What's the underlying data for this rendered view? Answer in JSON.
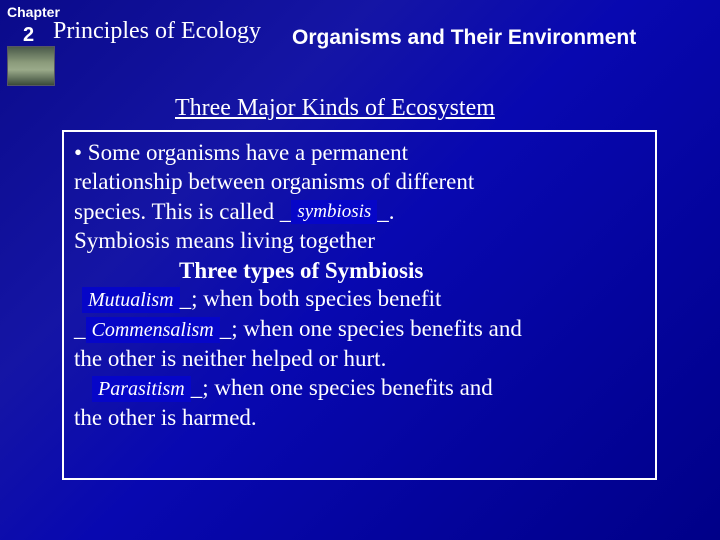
{
  "chapter": {
    "label": "Chapter",
    "number": "2",
    "title": "Principles of Ecology",
    "section": "Organisms and Their Environment"
  },
  "heading": "Three Major Kinds of Ecosystem",
  "body": {
    "intro1": "• Some organisms have a permanent",
    "intro2": "relationship between organisms of different",
    "intro3a": "species. This is called _",
    "sym_term": "symbiosis",
    "intro3b": "_.",
    "intro4": "Symbiosis means living together",
    "subhead": "Three types of Symbiosis",
    "mut_term": "Mutualism",
    "mut_tail": "_; when both species benefit",
    "com_lead": "_",
    "com_term": "Commensalism",
    "com_tail": "_; when one species benefits and",
    "com_line2": "the other is neither helped or hurt.",
    "par_term": "Parasitism",
    "par_tail": "_; when one species benefits and",
    "par_line2": "the other is harmed."
  },
  "colors": {
    "term_bg": "#0606c8",
    "border": "#ffffff",
    "text": "#ffffff"
  }
}
